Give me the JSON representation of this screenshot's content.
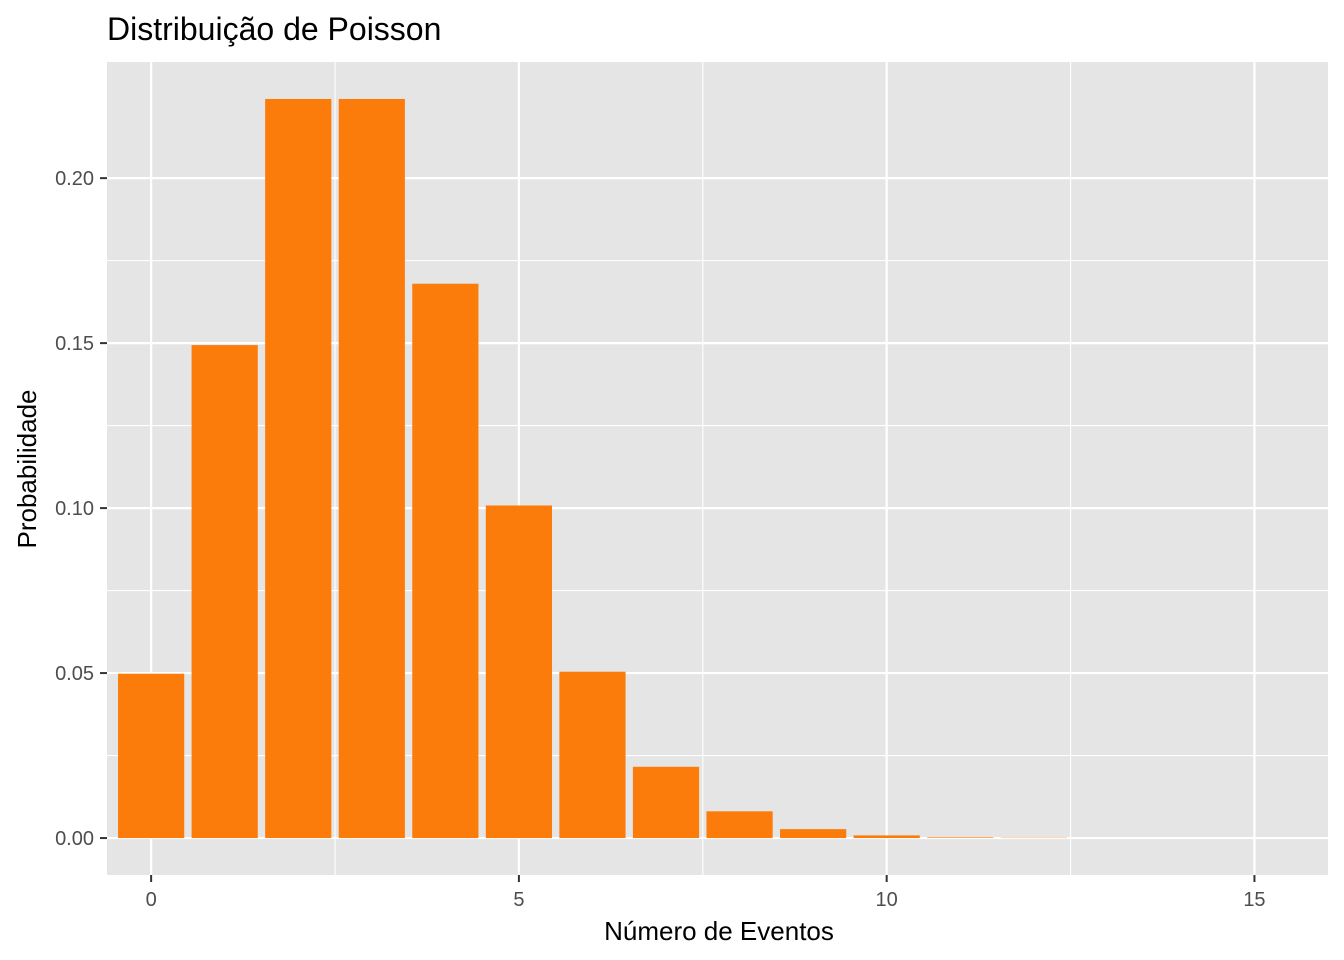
{
  "chart_data": {
    "type": "bar",
    "title": "Distribuição de Poisson",
    "xlabel": "Número de Eventos",
    "ylabel": "Probabilidade",
    "x": [
      0,
      1,
      2,
      3,
      4,
      5,
      6,
      7,
      8,
      9,
      10,
      11,
      12,
      13,
      14,
      15
    ],
    "values": [
      0.0498,
      0.1494,
      0.224,
      0.224,
      0.168,
      0.1008,
      0.0504,
      0.0216,
      0.0081,
      0.0027,
      0.0008,
      0.0002,
      0.0001,
      0.0,
      0.0,
      0.0
    ],
    "xlim": [
      -0.6,
      16.0
    ],
    "ylim": [
      -0.0112,
      0.2352
    ],
    "x_ticks": [
      0,
      5,
      10,
      15
    ],
    "x_tick_labels": [
      "0",
      "5",
      "10",
      "15"
    ],
    "y_ticks": [
      0.0,
      0.05,
      0.1,
      0.15,
      0.2
    ],
    "y_tick_labels": [
      "0.00",
      "0.05",
      "0.10",
      "0.15",
      "0.20"
    ],
    "grid": true,
    "legend": "none",
    "colors": {
      "bar": "#FC7C0B",
      "panel_background": "#E5E5E5",
      "grid": "#FFFFFF",
      "tick_text": "#4D4D4D",
      "tick_mark": "#333333"
    }
  }
}
